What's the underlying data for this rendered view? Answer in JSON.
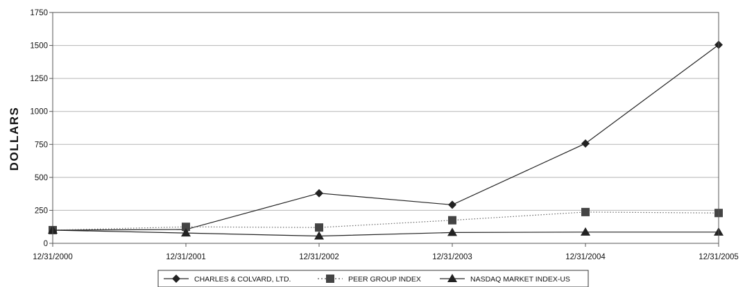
{
  "chart_data": {
    "type": "line",
    "title": "",
    "xlabel": "",
    "ylabel": "DOLLARS",
    "ylim": [
      0,
      1750
    ],
    "yticks": [
      0,
      250,
      500,
      750,
      1000,
      1250,
      1500,
      1750
    ],
    "categories": [
      "12/31/2000",
      "12/31/2001",
      "12/31/2002",
      "12/31/2003",
      "12/31/2004",
      "12/31/2005"
    ],
    "grid": true,
    "legend_position": "bottom",
    "series": [
      {
        "name": "CHARLES & COLVARD, LTD.",
        "marker": "diamond",
        "line": "solid",
        "color": "#222222",
        "values": [
          100,
          105,
          380,
          292,
          757,
          1505
        ]
      },
      {
        "name": "PEER GROUP INDEX",
        "marker": "square",
        "line": "dotted",
        "color": "#222222",
        "values": [
          100,
          125,
          120,
          175,
          237,
          230
        ]
      },
      {
        "name": "NASDAQ MARKET INDEX-US",
        "marker": "triangle",
        "line": "solid",
        "color": "#222222",
        "values": [
          100,
          78,
          55,
          82,
          85,
          85
        ]
      }
    ]
  }
}
